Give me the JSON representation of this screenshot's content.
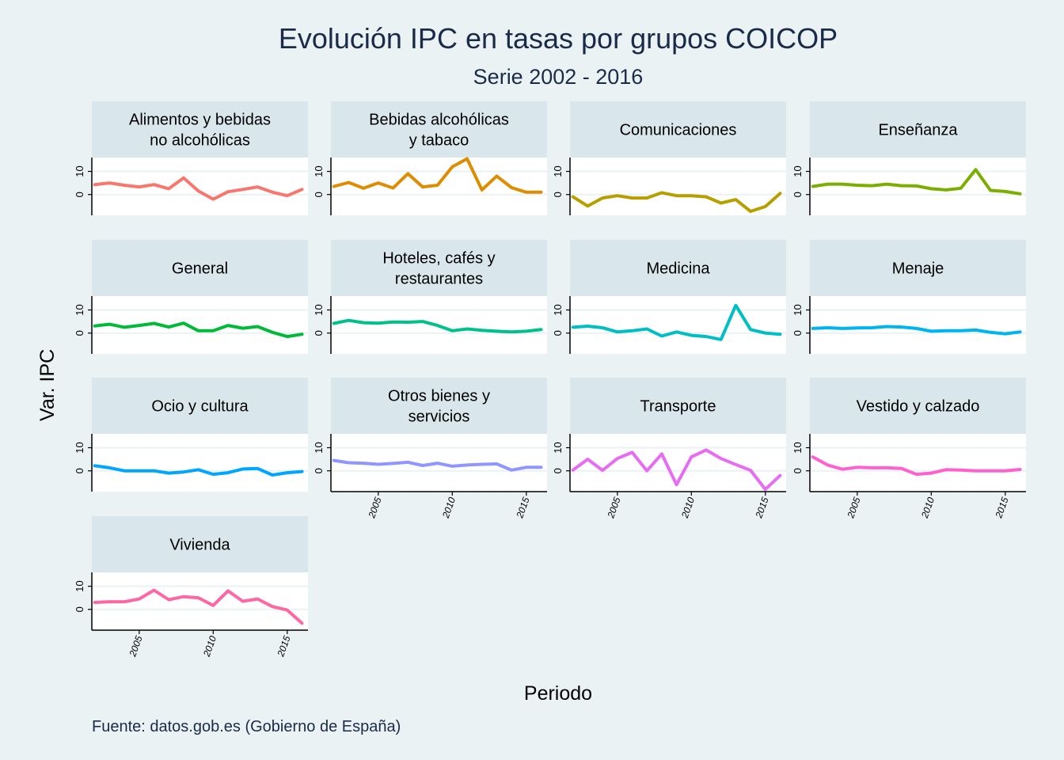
{
  "chart_data": {
    "type": "line",
    "title": "Evolución IPC en tasas por grupos COICOP",
    "subtitle": "Serie 2002 - 2016",
    "xlabel": "Periodo",
    "ylabel": "Var. IPC",
    "source": "Fuente: datos.gob.es (Gobierno de España)",
    "x": [
      2002,
      2003,
      2004,
      2005,
      2006,
      2007,
      2008,
      2009,
      2010,
      2011,
      2012,
      2013,
      2014,
      2015,
      2016
    ],
    "x_ticks": [
      2005,
      2010,
      2015
    ],
    "y_ticks": [
      0,
      10
    ],
    "ylim": [
      -9,
      16
    ],
    "grid": true,
    "legend": "none",
    "series": [
      {
        "name": "Alimentos y bebidas no alcohólicas",
        "label_lines": [
          "Alimentos y bebidas",
          "no alcohólicas"
        ],
        "color": "#f8766d",
        "values": [
          4.3,
          5.0,
          4.0,
          3.3,
          4.3,
          2.5,
          7.2,
          1.5,
          -2.0,
          1.2,
          2.2,
          3.3,
          1.0,
          -0.5,
          2.2
        ]
      },
      {
        "name": "Bebidas alcohólicas y tabaco",
        "label_lines": [
          "Bebidas alcohólicas",
          "y tabaco"
        ],
        "color": "#de8c00",
        "values": [
          3.5,
          5.2,
          2.7,
          5.0,
          2.8,
          9.0,
          3.3,
          4.0,
          12.0,
          15.5,
          2.0,
          8.0,
          3.0,
          1.0,
          1.0
        ]
      },
      {
        "name": "Comunicaciones",
        "label_lines": [
          "Comunicaciones"
        ],
        "color": "#b79f00",
        "values": [
          -1.0,
          -5.0,
          -1.5,
          -0.5,
          -1.5,
          -1.5,
          0.8,
          -0.5,
          -0.5,
          -1.0,
          -3.7,
          -2.2,
          -7.3,
          -5.2,
          0.5
        ]
      },
      {
        "name": "Enseñanza",
        "label_lines": [
          "Enseñanza"
        ],
        "color": "#7cae00",
        "values": [
          3.5,
          4.5,
          4.5,
          4.0,
          3.8,
          4.5,
          3.8,
          3.7,
          2.5,
          2.0,
          2.7,
          10.8,
          1.8,
          1.3,
          0.3
        ]
      },
      {
        "name": "General",
        "label_lines": [
          "General"
        ],
        "color": "#00ba38",
        "values": [
          3.1,
          3.8,
          2.5,
          3.3,
          4.2,
          2.6,
          4.3,
          1.0,
          1.0,
          3.3,
          2.1,
          2.8,
          0.3,
          -1.5,
          -0.5
        ]
      },
      {
        "name": "Hoteles, cafés y restaurantes",
        "label_lines": [
          "Hoteles, cafés y",
          "restaurantes"
        ],
        "color": "#00c08b",
        "values": [
          4.2,
          5.5,
          4.5,
          4.3,
          4.8,
          4.7,
          5.0,
          3.3,
          1.0,
          1.8,
          1.2,
          0.8,
          0.5,
          0.8,
          1.5
        ]
      },
      {
        "name": "Medicina",
        "label_lines": [
          "Medicina"
        ],
        "color": "#00bfc4",
        "values": [
          2.5,
          3.0,
          2.3,
          0.5,
          1.0,
          1.8,
          -1.3,
          0.5,
          -1.0,
          -1.5,
          -2.8,
          12.0,
          1.5,
          0.0,
          -0.5
        ]
      },
      {
        "name": "Menaje",
        "label_lines": [
          "Menaje"
        ],
        "color": "#00b4ef",
        "values": [
          2.0,
          2.3,
          2.0,
          2.2,
          2.3,
          2.8,
          2.6,
          2.0,
          0.8,
          1.0,
          1.0,
          1.3,
          0.3,
          -0.3,
          0.5
        ]
      },
      {
        "name": "Ocio y cultura",
        "label_lines": [
          "Ocio y cultura"
        ],
        "color": "#00a5ff",
        "values": [
          2.2,
          1.3,
          0.0,
          0.0,
          0.0,
          -1.0,
          -0.5,
          0.5,
          -1.5,
          -0.8,
          0.8,
          1.0,
          -1.8,
          -0.8,
          -0.3
        ]
      },
      {
        "name": "Otros bienes y servicios",
        "label_lines": [
          "Otros bienes y",
          "servicios"
        ],
        "color": "#8f96ff",
        "values": [
          4.5,
          3.5,
          3.3,
          2.8,
          3.2,
          3.7,
          2.3,
          3.3,
          2.0,
          2.5,
          2.8,
          3.0,
          0.3,
          1.5,
          1.5
        ]
      },
      {
        "name": "Transporte",
        "label_lines": [
          "Transporte"
        ],
        "color": "#e76bf3",
        "values": [
          0.3,
          5.0,
          0.2,
          5.3,
          8.0,
          0.0,
          7.3,
          -6.0,
          6.0,
          9.0,
          5.3,
          2.7,
          0.2,
          -8.0,
          -2.0
        ]
      },
      {
        "name": "Vestido y calzado",
        "label_lines": [
          "Vestido y calzado"
        ],
        "color": "#fe61cf",
        "values": [
          6.0,
          2.5,
          0.7,
          1.5,
          1.3,
          1.3,
          1.0,
          -1.5,
          -1.0,
          0.5,
          0.3,
          0.0,
          0.0,
          0.0,
          0.6
        ]
      },
      {
        "name": "Vivienda",
        "label_lines": [
          "Vivienda"
        ],
        "color": "#ff67a4",
        "values": [
          3.0,
          3.3,
          3.3,
          4.5,
          8.3,
          4.2,
          5.5,
          5.0,
          1.7,
          8.0,
          3.5,
          4.5,
          1.2,
          -0.3,
          -6.0
        ]
      }
    ]
  }
}
